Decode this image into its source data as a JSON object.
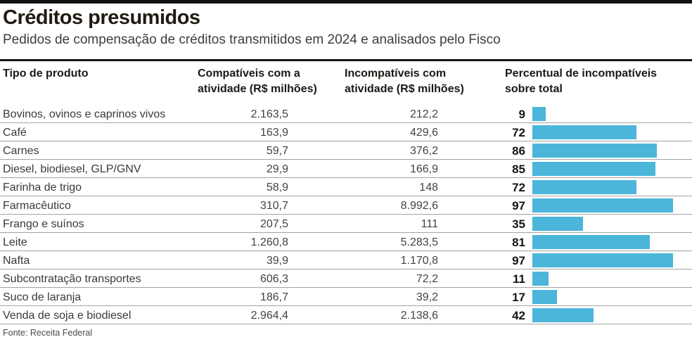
{
  "header": {
    "title": "Créditos presumidos",
    "subtitle": "Pedidos de compensação de créditos transmitidos em 2024 e analisados pelo Fisco"
  },
  "colors": {
    "bar_blue": "#4bb6da",
    "rule_black": "#171310",
    "separator_gray": "#a3a3a3"
  },
  "table": {
    "headers": [
      "Tipo de produto",
      "Compatíveis com a\natividade (R$ milhões)",
      "Incompatíveis com\natividade (R$ milhões)",
      "Percentual de incompatíveis\nsobre total"
    ],
    "rows": [
      {
        "product": "Bovinos, ovinos e caprinos vivos",
        "compativeis": "2.163,5",
        "incompativeis": "212,2",
        "pct_label": "9",
        "pct_value": 9
      },
      {
        "product": "Café",
        "compativeis": "163,9",
        "incompativeis": "429,6",
        "pct_label": "72",
        "pct_value": 72
      },
      {
        "product": "Carnes",
        "compativeis": "59,7",
        "incompativeis": "376,2",
        "pct_label": "86",
        "pct_value": 86
      },
      {
        "product": "Diesel, biodiesel, GLP/GNV",
        "compativeis": "29,9",
        "incompativeis": "166,9",
        "pct_label": "85",
        "pct_value": 85
      },
      {
        "product": "Farinha de trigo",
        "compativeis": "58,9",
        "incompativeis": "148",
        "pct_label": "72",
        "pct_value": 72
      },
      {
        "product": "Farmacêutico",
        "compativeis": "310,7",
        "incompativeis": "8.992,6",
        "pct_label": "97",
        "pct_value": 97
      },
      {
        "product": "Frango e suínos",
        "compativeis": "207,5",
        "incompativeis": "111",
        "pct_label": "35",
        "pct_value": 35
      },
      {
        "product": "Leite",
        "compativeis": "1.260,8",
        "incompativeis": "5.283,5",
        "pct_label": "81",
        "pct_value": 81
      },
      {
        "product": "Nafta",
        "compativeis": "39,9",
        "incompativeis": "1.170,8",
        "pct_label": "97",
        "pct_value": 97
      },
      {
        "product": "Subcontratação transportes",
        "compativeis": "606,3",
        "incompativeis": "72,2",
        "pct_label": "11",
        "pct_value": 11
      },
      {
        "product": "Suco de laranja",
        "compativeis": "186,7",
        "incompativeis": "39,2",
        "pct_label": "17",
        "pct_value": 17
      },
      {
        "product": "Venda de soja e biodiesel",
        "compativeis": "2.964,4",
        "incompativeis": "2.138,6",
        "pct_label": "42",
        "pct_value": 42
      }
    ]
  },
  "footer": {
    "source": "Fonte: Receita Federal"
  },
  "chart_data": {
    "type": "bar",
    "title": "Créditos presumidos",
    "subtitle": "Pedidos de compensação de créditos transmitidos em 2024 e analisados pelo Fisco",
    "orientation": "horizontal",
    "categories": [
      "Bovinos, ovinos e caprinos vivos",
      "Café",
      "Carnes",
      "Diesel, biodiesel, GLP/GNV",
      "Farinha de trigo",
      "Farmacêutico",
      "Frango e suínos",
      "Leite",
      "Nafta",
      "Subcontratação transportes",
      "Suco de laranja",
      "Venda de soja e biodiesel"
    ],
    "series": [
      {
        "name": "Compatíveis com a atividade (R$ milhões)",
        "values": [
          2163.5,
          163.9,
          59.7,
          29.9,
          58.9,
          310.7,
          207.5,
          1260.8,
          39.9,
          606.3,
          186.7,
          2964.4
        ]
      },
      {
        "name": "Incompatíveis com atividade (R$ milhões)",
        "values": [
          212.2,
          429.6,
          376.2,
          166.9,
          148,
          8992.6,
          111,
          5283.5,
          1170.8,
          72.2,
          39.2,
          2138.6
        ]
      },
      {
        "name": "Percentual de incompatíveis sobre total (%)",
        "values": [
          9,
          72,
          86,
          85,
          72,
          97,
          35,
          81,
          97,
          11,
          17,
          42
        ]
      }
    ],
    "bar_series_plotted": "Percentual de incompatíveis sobre total (%)",
    "xlim": [
      0,
      100
    ],
    "grid": false,
    "legend_position": "none",
    "bar_color": "#4bb6da",
    "source_note": "Fonte: Receita Federal"
  }
}
